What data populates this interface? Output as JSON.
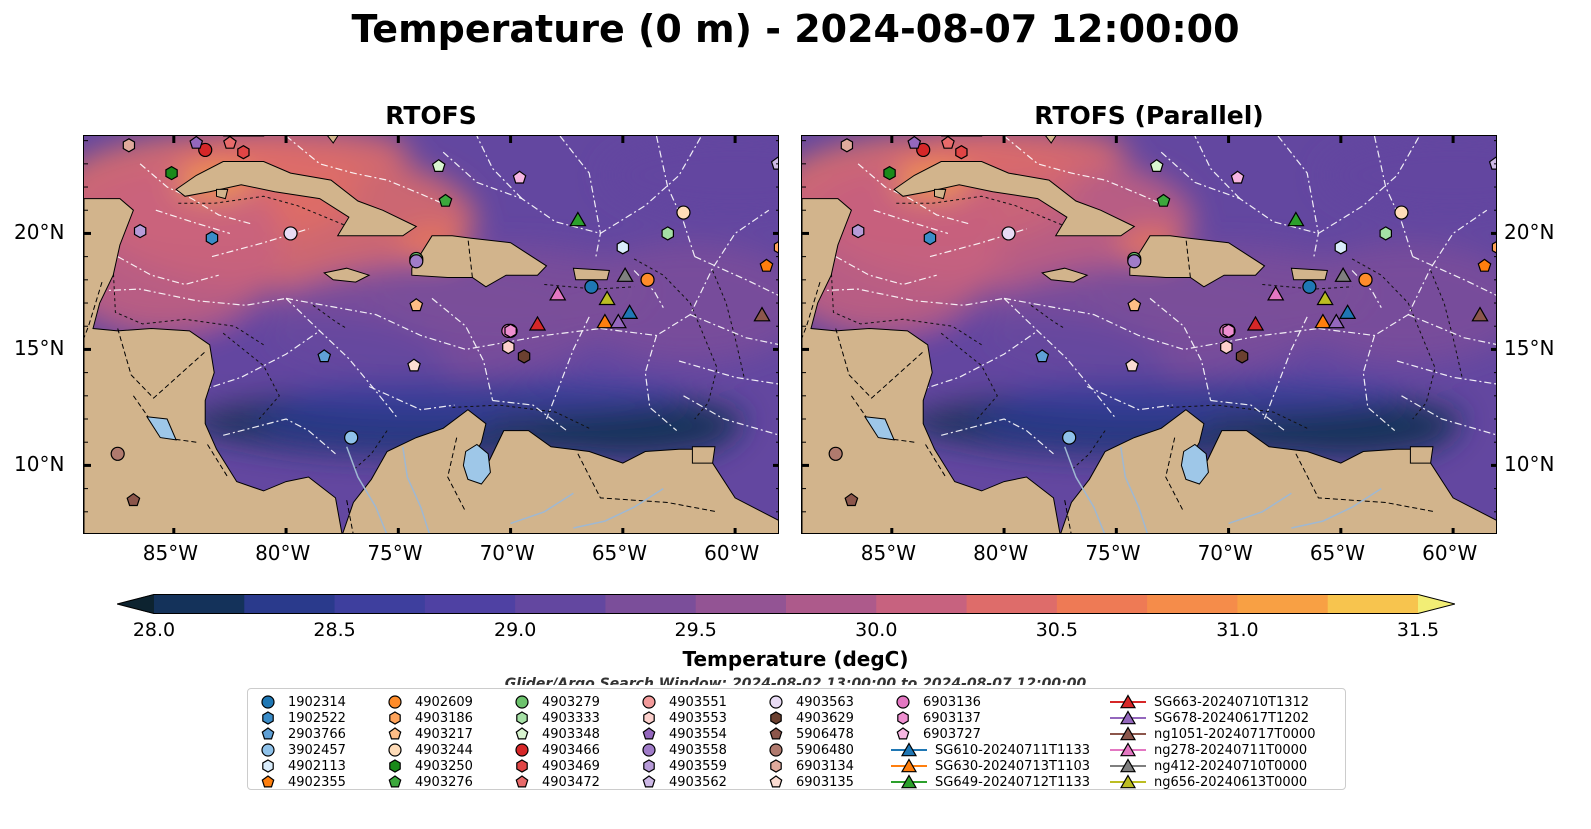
{
  "title": "Temperature (0 m) - 2024-08-07 12:00:00",
  "panels": [
    {
      "title": "RTOFS"
    },
    {
      "title": "RTOFS (Parallel)"
    }
  ],
  "axes": {
    "x_ticks": [
      "85°W",
      "80°W",
      "75°W",
      "70°W",
      "65°W",
      "60°W"
    ],
    "y_ticks": [
      "20°N",
      "15°N",
      "10°N"
    ],
    "lon_range": [
      -89,
      -58
    ],
    "lat_range": [
      7,
      24.2
    ]
  },
  "colorbar": {
    "label": "Temperature (degC)",
    "ticks": [
      "28.0",
      "28.5",
      "29.0",
      "29.5",
      "30.0",
      "30.5",
      "31.0",
      "31.5"
    ],
    "range": [
      28.0,
      31.5
    ],
    "extend": "both",
    "colors": [
      "#0d2330",
      "#14325a",
      "#2a3a8c",
      "#3e3f9e",
      "#4f41a3",
      "#6347a0",
      "#7b4e9a",
      "#935494",
      "#ad5a8b",
      "#c7627f",
      "#de6c6a",
      "#ee7a55",
      "#f58c4a",
      "#f8a044",
      "#f7c44e",
      "#f2ee75"
    ]
  },
  "search_window": "Glider/Argo Search Window: 2024-08-02 13:00:00 to 2024-08-07 12:00:00",
  "land_color": "#d2b48c",
  "lake_color": "#9ec7e8",
  "legend": {
    "columns": [
      [
        {
          "label": "1902314",
          "marker": "circle",
          "color": "#1f77b4"
        },
        {
          "label": "1902522",
          "marker": "hexagon",
          "color": "#3a8cc8"
        },
        {
          "label": "2903766",
          "marker": "pentagon",
          "color": "#5fa0d6"
        },
        {
          "label": "3902457",
          "marker": "circle",
          "color": "#8fc2ea"
        },
        {
          "label": "4902113",
          "marker": "hexagon",
          "color": "#d9ecfb"
        },
        {
          "label": "4902355",
          "marker": "pentagon",
          "color": "#ff7f0e"
        }
      ],
      [
        {
          "label": "4902609",
          "marker": "circle",
          "color": "#ff8c2a"
        },
        {
          "label": "4903186",
          "marker": "hexagon",
          "color": "#ffa35a"
        },
        {
          "label": "4903217",
          "marker": "pentagon",
          "color": "#ffbd86"
        },
        {
          "label": "4903244",
          "marker": "circle",
          "color": "#ffdcb8"
        },
        {
          "label": "4903250",
          "marker": "hexagon",
          "color": "#1a8a1a"
        },
        {
          "label": "4903276",
          "marker": "pentagon",
          "color": "#3ca83c"
        }
      ],
      [
        {
          "label": "4903279",
          "marker": "circle",
          "color": "#6cc26c"
        },
        {
          "label": "4903333",
          "marker": "hexagon",
          "color": "#a5e0a5"
        },
        {
          "label": "4903348",
          "marker": "pentagon",
          "color": "#d9f5d0"
        },
        {
          "label": "4903466",
          "marker": "circle",
          "color": "#d62728"
        },
        {
          "label": "4903469",
          "marker": "hexagon",
          "color": "#e04545"
        },
        {
          "label": "4903472",
          "marker": "pentagon",
          "color": "#e86a6a"
        }
      ],
      [
        {
          "label": "4903551",
          "marker": "circle",
          "color": "#f29a9a"
        },
        {
          "label": "4903553",
          "marker": "hexagon",
          "color": "#fcd0cc"
        },
        {
          "label": "4903554",
          "marker": "pentagon",
          "color": "#9467bd"
        },
        {
          "label": "4903558",
          "marker": "circle",
          "color": "#a07cc8"
        },
        {
          "label": "4903559",
          "marker": "hexagon",
          "color": "#b79bd8"
        },
        {
          "label": "4903562",
          "marker": "pentagon",
          "color": "#cdb8e6"
        }
      ],
      [
        {
          "label": "4903563",
          "marker": "circle",
          "color": "#e8dbf4"
        },
        {
          "label": "4903629",
          "marker": "hexagon",
          "color": "#6b4030"
        },
        {
          "label": "5906478",
          "marker": "pentagon",
          "color": "#8c564b"
        },
        {
          "label": "5906480",
          "marker": "circle",
          "color": "#b07a6e"
        },
        {
          "label": "6903134",
          "marker": "hexagon",
          "color": "#e0aa9c"
        },
        {
          "label": "6903135",
          "marker": "pentagon",
          "color": "#fbdcd2"
        }
      ],
      [
        {
          "label": "6903136",
          "marker": "circle",
          "color": "#e377c2"
        },
        {
          "label": "6903137",
          "marker": "hexagon",
          "color": "#ee8fd0"
        },
        {
          "label": "6903727",
          "marker": "pentagon",
          "color": "#f7b6e2"
        },
        {
          "label": "SG610-20240711T1133",
          "marker": "triangle",
          "color": "#1f77b4"
        },
        {
          "label": "SG630-20240713T1103",
          "marker": "triangle",
          "color": "#ff7f0e"
        },
        {
          "label": "SG649-20240712T1133",
          "marker": "triangle",
          "color": "#2ca02c"
        }
      ],
      [
        {
          "label": "SG663-20240710T1312",
          "marker": "triangle",
          "color": "#d62728"
        },
        {
          "label": "SG678-20240617T1202",
          "marker": "triangle",
          "color": "#9467bd"
        },
        {
          "label": "ng1051-20240717T0000",
          "marker": "triangle",
          "color": "#8c564b"
        },
        {
          "label": "ng278-20240711T0000",
          "marker": "triangle",
          "color": "#e377c2"
        },
        {
          "label": "ng412-20240710T0000",
          "marker": "triangle",
          "color": "#7f7f7f"
        },
        {
          "label": "ng656-20240613T0000",
          "marker": "triangle",
          "color": "#bcbd22"
        }
      ]
    ]
  },
  "markers": [
    {
      "id": "1902314",
      "lon": -66.4,
      "lat": 17.7
    },
    {
      "id": "1902522",
      "lon": -83.3,
      "lat": 19.8
    },
    {
      "id": "2903766",
      "lon": -78.3,
      "lat": 14.7
    },
    {
      "id": "3902457",
      "lon": -77.1,
      "lat": 11.2
    },
    {
      "id": "4902113",
      "lon": -65.0,
      "lat": 19.4
    },
    {
      "id": "4902355",
      "lon": -58.6,
      "lat": 18.6
    },
    {
      "id": "4902609",
      "lon": -63.9,
      "lat": 18.0
    },
    {
      "id": "4903186",
      "lon": -58.0,
      "lat": 19.4
    },
    {
      "id": "4903217",
      "lon": -74.2,
      "lat": 16.9
    },
    {
      "id": "4903244",
      "lon": -62.3,
      "lat": 20.9
    },
    {
      "id": "4903250",
      "lon": -85.1,
      "lat": 22.6
    },
    {
      "id": "4903276",
      "lon": -72.9,
      "lat": 21.4
    },
    {
      "id": "4903279",
      "lon": -74.2,
      "lat": 18.9
    },
    {
      "id": "4903333",
      "lon": -63.0,
      "lat": 20.0
    },
    {
      "id": "4903348",
      "lon": -73.2,
      "lat": 22.9
    },
    {
      "id": "4903466",
      "lon": -83.6,
      "lat": 23.6
    },
    {
      "id": "4903469",
      "lon": -81.9,
      "lat": 23.5
    },
    {
      "id": "4903472",
      "lon": -82.5,
      "lat": 23.9
    },
    {
      "id": "4903551",
      "lon": -70.0,
      "lat": 15.8
    },
    {
      "id": "4903553",
      "lon": -70.1,
      "lat": 15.1
    },
    {
      "id": "4903554",
      "lon": -84.0,
      "lat": 23.9
    },
    {
      "id": "4903558",
      "lon": -74.2,
      "lat": 18.8
    },
    {
      "id": "4903559",
      "lon": -86.5,
      "lat": 20.1
    },
    {
      "id": "4903562",
      "lon": -58.1,
      "lat": 23.0
    },
    {
      "id": "4903563",
      "lon": -79.8,
      "lat": 20.0
    },
    {
      "id": "4903629",
      "lon": -69.4,
      "lat": 14.7
    },
    {
      "id": "5906478",
      "lon": -86.8,
      "lat": 8.5
    },
    {
      "id": "5906480",
      "lon": -87.5,
      "lat": 10.5
    },
    {
      "id": "6903134",
      "lon": -87.0,
      "lat": 23.8
    },
    {
      "id": "6903135",
      "lon": -74.3,
      "lat": 14.3
    },
    {
      "id": "6903136",
      "lon": -70.1,
      "lat": 15.8
    },
    {
      "id": "6903137",
      "lon": -70.0,
      "lat": 15.8
    },
    {
      "id": "6903727",
      "lon": -69.6,
      "lat": 22.4
    },
    {
      "id": "SG610-20240711T1133",
      "lon": -64.7,
      "lat": 16.6
    },
    {
      "id": "SG630-20240713T1103",
      "lon": -65.8,
      "lat": 16.2
    },
    {
      "id": "SG649-20240712T1133",
      "lon": -67.0,
      "lat": 20.6
    },
    {
      "id": "SG663-20240710T1312",
      "lon": -68.8,
      "lat": 16.1
    },
    {
      "id": "SG678-20240617T1202",
      "lon": -65.2,
      "lat": 16.2
    },
    {
      "id": "ng1051-20240717T0000",
      "lon": -58.8,
      "lat": 16.5
    },
    {
      "id": "ng278-20240711T0000",
      "lon": -67.9,
      "lat": 17.4
    },
    {
      "id": "ng412-20240710T0000",
      "lon": -64.9,
      "lat": 18.2
    },
    {
      "id": "ng656-20240613T0000",
      "lon": -65.7,
      "lat": 17.2
    }
  ]
}
